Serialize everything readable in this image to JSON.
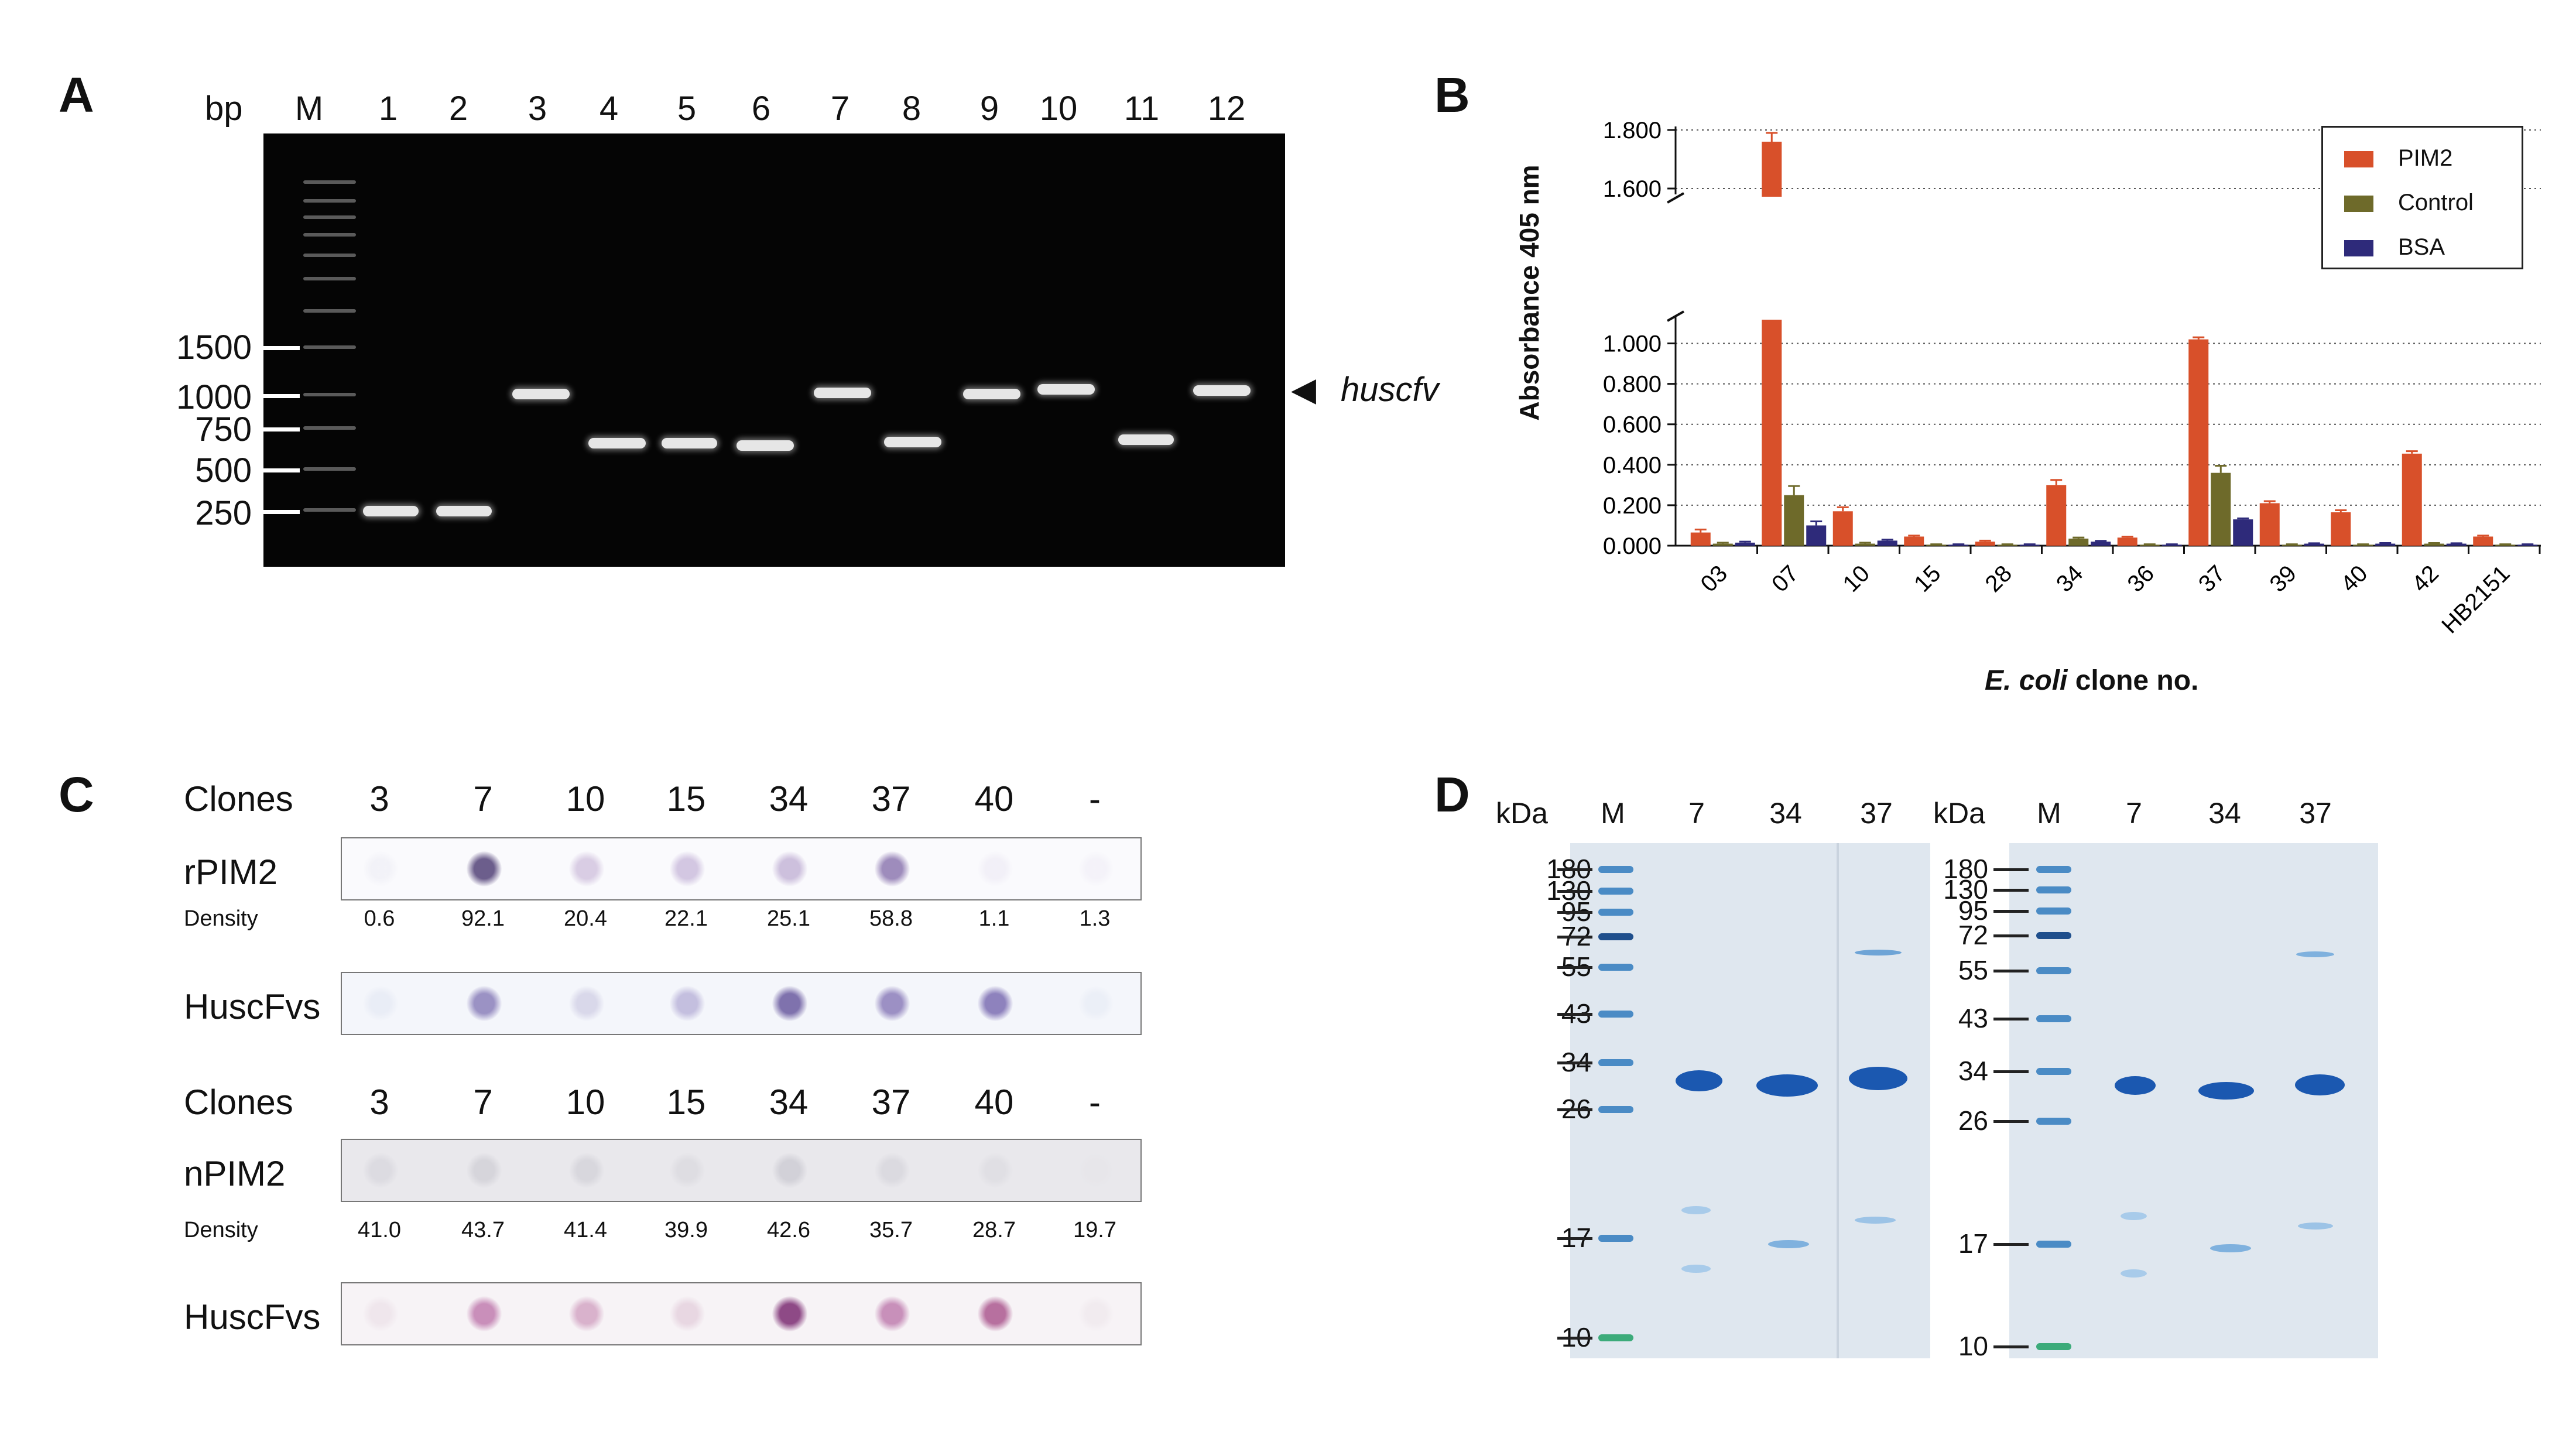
{
  "panels": {
    "a": {
      "label": "A",
      "bp_label": "bp",
      "lanes": [
        "M",
        "1",
        "2",
        "3",
        "4",
        "5",
        "6",
        "7",
        "8",
        "9",
        "10",
        "11",
        "12"
      ],
      "bp_markers": [
        "1500",
        "1000",
        "750",
        "500",
        "250"
      ],
      "arrow_label": "huscfv",
      "arrow": "◀"
    },
    "b": {
      "label": "B",
      "legend": [
        "PIM2",
        "Control",
        "BSA"
      ],
      "xlabel_italic": "E. coli",
      "xlabel_rest": " clone no.",
      "ylabel": "Absorbance 405 nm"
    },
    "c": {
      "label": "C",
      "clones_label": "Clones",
      "clones": [
        "3",
        "7",
        "10",
        "15",
        "34",
        "37",
        "40",
        "-"
      ],
      "row_rpim2": "rPIM2",
      "row_huscfvs": "HuscFvs",
      "row_npim2": "nPIM2",
      "density_label": "Density",
      "density_r": [
        "0.6",
        "92.1",
        "20.4",
        "22.1",
        "25.1",
        "58.8",
        "1.1",
        "1.3"
      ],
      "density_n": [
        "41.0",
        "43.7",
        "41.4",
        "39.9",
        "42.6",
        "35.7",
        "28.7",
        "19.7"
      ]
    },
    "d": {
      "label": "D",
      "kda_label": "kDa",
      "lanes": [
        "M",
        "7",
        "34",
        "37"
      ],
      "mw_markers": [
        "180",
        "130",
        "95",
        "72",
        "55",
        "43",
        "34",
        "26",
        "17",
        "10"
      ]
    }
  },
  "chart_data": {
    "type": "bar",
    "title": "",
    "xlabel": "E. coli clone no.",
    "ylabel": "Absorbance 405 nm",
    "categories": [
      "03",
      "07",
      "10",
      "15",
      "28",
      "34",
      "36",
      "37",
      "39",
      "40",
      "42",
      "HB2151"
    ],
    "series": [
      {
        "name": "PIM2",
        "color": "#d8502a",
        "values": [
          0.065,
          1.76,
          0.17,
          0.045,
          0.02,
          0.3,
          0.04,
          1.02,
          0.21,
          0.165,
          0.455,
          0.045
        ]
      },
      {
        "name": "Control",
        "color": "#6e6a2a",
        "values": [
          0.01,
          0.25,
          0.01,
          0.005,
          0.005,
          0.035,
          0.005,
          0.36,
          0.005,
          0.005,
          0.01,
          0.005
        ]
      },
      {
        "name": "BSA",
        "color": "#2e2a7a",
        "values": [
          0.015,
          0.1,
          0.025,
          0.005,
          0.005,
          0.02,
          0.005,
          0.13,
          0.01,
          0.01,
          0.01,
          0.005
        ]
      }
    ],
    "errors": [
      [
        0.015,
        0.03,
        0.02,
        0.005,
        0.005,
        0.025,
        0.005,
        0.01,
        0.01,
        0.01,
        0.012,
        0.005
      ],
      [
        0.005,
        0.045,
        0.005,
        0.002,
        0.002,
        0.005,
        0.002,
        0.035,
        0.002,
        0.002,
        0.003,
        0.002
      ],
      [
        0.005,
        0.02,
        0.005,
        0.002,
        0.002,
        0.004,
        0.002,
        0.005,
        0.002,
        0.003,
        0.002,
        0.002
      ]
    ],
    "y_lower_range": [
      0,
      1.1
    ],
    "y_lower_ticks": [
      "0.000",
      "0.200",
      "0.400",
      "0.600",
      "0.800",
      "1.000"
    ],
    "y_upper_range": [
      1.6,
      1.8
    ],
    "y_upper_ticks": [
      "1.600",
      "1.800"
    ],
    "axis_break": true,
    "grid": "dotted",
    "legend_position": "top-right"
  }
}
